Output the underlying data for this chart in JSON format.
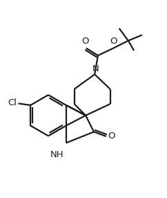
{
  "background_color": "#ffffff",
  "line_color": "#1a1a1a",
  "line_width": 1.6,
  "font_size": 9.5,
  "figsize": [
    2.42,
    2.86
  ],
  "dpi": 100,
  "xlim": [
    0,
    10
  ],
  "ylim": [
    0,
    12
  ]
}
